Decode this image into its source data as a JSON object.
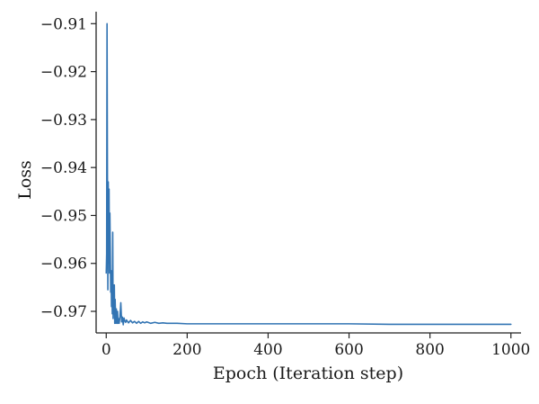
{
  "chart_data": {
    "type": "line",
    "title": "",
    "xlabel": "Epoch (Iteration step)",
    "ylabel": "Loss",
    "xlim": [
      -25,
      1025
    ],
    "ylim": [
      -0.9745,
      -0.9075
    ],
    "xticks": [
      0,
      200,
      400,
      600,
      800,
      1000
    ],
    "xtick_labels": [
      "0",
      "200",
      "400",
      "600",
      "800",
      "1000"
    ],
    "yticks": [
      -0.91,
      -0.92,
      -0.93,
      -0.94,
      -0.95,
      -0.96,
      -0.97
    ],
    "ytick_labels": [
      "−0.91",
      "−0.92",
      "−0.93",
      "−0.94",
      "−0.95",
      "−0.96",
      "−0.97"
    ],
    "grid": false,
    "line_color": "#3274b3",
    "series": [
      {
        "x": [
          0,
          1,
          2,
          3,
          4,
          5,
          6,
          7,
          8,
          9,
          10,
          11,
          12,
          13,
          14,
          15,
          16,
          17,
          18,
          19,
          20,
          21,
          22,
          23,
          24,
          25,
          26,
          27,
          28,
          29,
          30,
          32,
          34,
          36,
          38,
          40,
          42,
          44,
          46,
          48,
          50,
          55,
          60,
          65,
          70,
          75,
          80,
          85,
          90,
          95,
          100,
          110,
          120,
          130,
          140,
          150,
          175,
          200,
          250,
          300,
          400,
          500,
          600,
          700,
          800,
          900,
          1000
        ],
        "values": [
          -0.962,
          -0.958,
          -0.91,
          -0.942,
          -0.9655,
          -0.943,
          -0.96,
          -0.9445,
          -0.962,
          -0.9495,
          -0.957,
          -0.966,
          -0.9615,
          -0.969,
          -0.963,
          -0.9705,
          -0.9535,
          -0.9715,
          -0.9645,
          -0.9705,
          -0.9645,
          -0.9725,
          -0.9675,
          -0.9705,
          -0.9725,
          -0.9695,
          -0.9715,
          -0.9725,
          -0.97,
          -0.9725,
          -0.9715,
          -0.9725,
          -0.971,
          -0.9682,
          -0.9722,
          -0.9712,
          -0.9728,
          -0.9714,
          -0.972,
          -0.9723,
          -0.9718,
          -0.9724,
          -0.9719,
          -0.9724,
          -0.9721,
          -0.9725,
          -0.9721,
          -0.9725,
          -0.9722,
          -0.9724,
          -0.9722,
          -0.9725,
          -0.9723,
          -0.9725,
          -0.9724,
          -0.9725,
          -0.9725,
          -0.9726,
          -0.9726,
          -0.9726,
          -0.9726,
          -0.9726,
          -0.9726,
          -0.9727,
          -0.9727,
          -0.9727,
          -0.9727
        ]
      }
    ]
  }
}
